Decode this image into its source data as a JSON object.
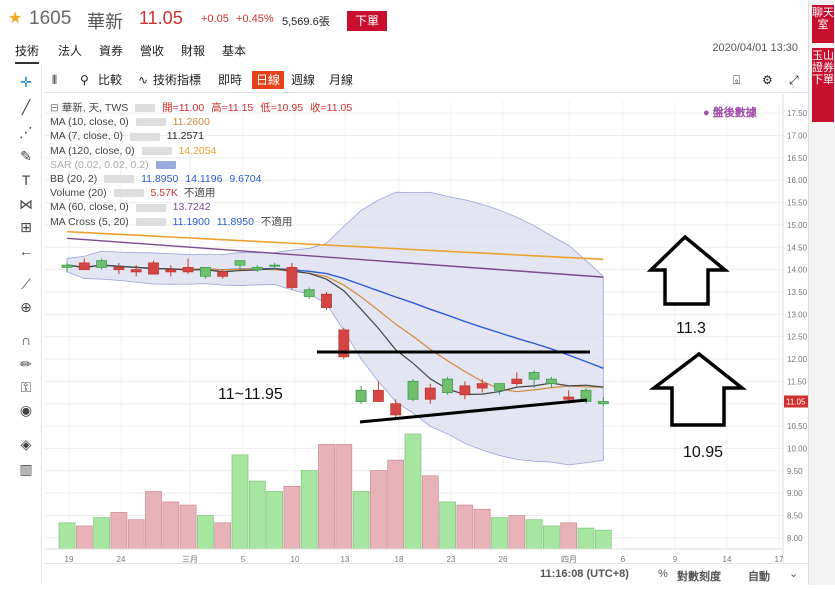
{
  "header": {
    "code": "1605",
    "name": "華新",
    "price": "11.05",
    "change": "+0.05",
    "change_pct": "+0.45%",
    "volume": "5,569.6張",
    "order_button": "下單"
  },
  "nav": {
    "tabs": [
      "技術",
      "法人",
      "資券",
      "營收",
      "財報",
      "基本"
    ],
    "datetime": "2020/04/01 13:30"
  },
  "right_rail": {
    "chat": "聊天室",
    "broker": "玉山證券下單"
  },
  "toolbar": {
    "compare": "比較",
    "indicators": "技術指標",
    "realtime": "即時",
    "daily": "日線",
    "weekly": "週線",
    "monthly": "月線"
  },
  "legend": {
    "main": {
      "label": "華新, 天, TWS",
      "open": "開=11.00",
      "high": "高=11.15",
      "low": "低=10.95",
      "close": "收=11.05"
    },
    "ma10": {
      "label": "MA (10, close, 0)",
      "value": "11.2600"
    },
    "ma7": {
      "label": "MA (7, close, 0)",
      "value": "11.2571"
    },
    "ma120": {
      "label": "MA (120, close, 0)",
      "value": "14.2054"
    },
    "sar": {
      "label": "SAR (0.02, 0.02, 0.2)"
    },
    "bb": {
      "label": "BB (20, 2)",
      "v1": "11.8950",
      "v2": "14.1196",
      "v3": "9.6704"
    },
    "vol": {
      "label": "Volume (20)",
      "value": "5.57K",
      "na": "不適用"
    },
    "ma60": {
      "label": "MA (60, close, 0)",
      "value": "13.7242"
    },
    "macross": {
      "label": "MA Cross (5, 20)",
      "v1": "11.1900",
      "v2": "11.8950",
      "na": "不適用"
    }
  },
  "watermark": "盤後數據",
  "annotations": {
    "range": "11~11.95",
    "target_up": "11.3",
    "target_low": "10.95"
  },
  "status": {
    "time": "11:16:08 (UTC+8)",
    "pct": "%",
    "log": "對數刻度",
    "auto": "自動"
  },
  "colors": {
    "up": "#3a9e4a",
    "down": "#d64545",
    "active_tab": "#e5421a",
    "accent_red": "#c8102e",
    "bb_fill": "#d9dcef",
    "ma10": "#d08b3e",
    "ma7": "#444444",
    "ma120": "#f0a030",
    "bb_mid": "#2a5bd7",
    "ma60": "#7b4a8c"
  },
  "chart_data": {
    "type": "candlestick",
    "price_axis": {
      "ticks": [
        "17.50",
        "17.00",
        "16.50",
        "16.00",
        "15.50",
        "15.00",
        "14.50",
        "14.00",
        "13.50",
        "13.00",
        "12.50",
        "12.00",
        "11.50",
        "11.00",
        "10.50",
        "10.00",
        "9.50",
        "9.00",
        "8.50",
        "8.00"
      ],
      "ylim": [
        7.75,
        17.75
      ]
    },
    "x_ticks": [
      "19",
      "24",
      "三月",
      "5",
      "10",
      "13",
      "18",
      "23",
      "26",
      "四月",
      "6",
      "9",
      "14",
      "17"
    ],
    "candles": [
      {
        "o": 14.05,
        "h": 14.15,
        "l": 13.95,
        "c": 14.1
      },
      {
        "o": 14.15,
        "h": 14.25,
        "l": 14.0,
        "c": 14.0
      },
      {
        "o": 14.05,
        "h": 14.25,
        "l": 14.0,
        "c": 14.2
      },
      {
        "o": 14.05,
        "h": 14.15,
        "l": 13.9,
        "c": 14.0
      },
      {
        "o": 14.0,
        "h": 14.1,
        "l": 13.85,
        "c": 13.95
      },
      {
        "o": 14.15,
        "h": 14.2,
        "l": 13.9,
        "c": 13.9
      },
      {
        "o": 14.0,
        "h": 14.1,
        "l": 13.85,
        "c": 13.95
      },
      {
        "o": 14.05,
        "h": 14.25,
        "l": 13.9,
        "c": 13.95
      },
      {
        "o": 13.85,
        "h": 14.05,
        "l": 13.8,
        "c": 14.05
      },
      {
        "o": 13.95,
        "h": 14.0,
        "l": 13.8,
        "c": 13.85
      },
      {
        "o": 14.1,
        "h": 14.2,
        "l": 14.0,
        "c": 14.2
      },
      {
        "o": 14.0,
        "h": 14.1,
        "l": 13.95,
        "c": 14.05
      },
      {
        "o": 14.1,
        "h": 14.15,
        "l": 14.0,
        "c": 14.1
      },
      {
        "o": 14.05,
        "h": 14.15,
        "l": 13.55,
        "c": 13.6
      },
      {
        "o": 13.4,
        "h": 13.6,
        "l": 13.35,
        "c": 13.55
      },
      {
        "o": 13.45,
        "h": 13.5,
        "l": 13.1,
        "c": 13.15
      },
      {
        "o": 12.65,
        "h": 12.7,
        "l": 12.0,
        "c": 12.05
      },
      {
        "o": 11.05,
        "h": 11.4,
        "l": 11.0,
        "c": 11.3
      },
      {
        "o": 11.3,
        "h": 11.5,
        "l": 11.05,
        "c": 11.05
      },
      {
        "o": 11.0,
        "h": 11.1,
        "l": 10.7,
        "c": 10.75
      },
      {
        "o": 11.1,
        "h": 11.55,
        "l": 11.05,
        "c": 11.5
      },
      {
        "o": 11.35,
        "h": 11.45,
        "l": 11.0,
        "c": 11.1
      },
      {
        "o": 11.25,
        "h": 11.6,
        "l": 11.2,
        "c": 11.55
      },
      {
        "o": 11.4,
        "h": 11.5,
        "l": 11.1,
        "c": 11.2
      },
      {
        "o": 11.45,
        "h": 11.55,
        "l": 11.25,
        "c": 11.35
      },
      {
        "o": 11.3,
        "h": 11.45,
        "l": 11.2,
        "c": 11.45
      },
      {
        "o": 11.55,
        "h": 11.7,
        "l": 11.4,
        "c": 11.45
      },
      {
        "o": 11.55,
        "h": 11.75,
        "l": 11.35,
        "c": 11.7
      },
      {
        "o": 11.45,
        "h": 11.6,
        "l": 11.35,
        "c": 11.55
      },
      {
        "o": 11.15,
        "h": 11.3,
        "l": 11.0,
        "c": 11.1
      },
      {
        "o": 11.05,
        "h": 11.35,
        "l": 11.0,
        "c": 11.3
      },
      {
        "o": 11.0,
        "h": 11.15,
        "l": 10.95,
        "c": 11.05
      }
    ],
    "volume": [
      0.25,
      0.22,
      0.3,
      0.35,
      0.28,
      0.55,
      0.45,
      0.42,
      0.32,
      0.25,
      0.9,
      0.65,
      0.55,
      0.6,
      0.75,
      1.0,
      1.0,
      0.55,
      0.75,
      0.85,
      1.1,
      0.7,
      0.45,
      0.42,
      0.38,
      0.3,
      0.32,
      0.28,
      0.22,
      0.25,
      0.2,
      0.18
    ]
  }
}
